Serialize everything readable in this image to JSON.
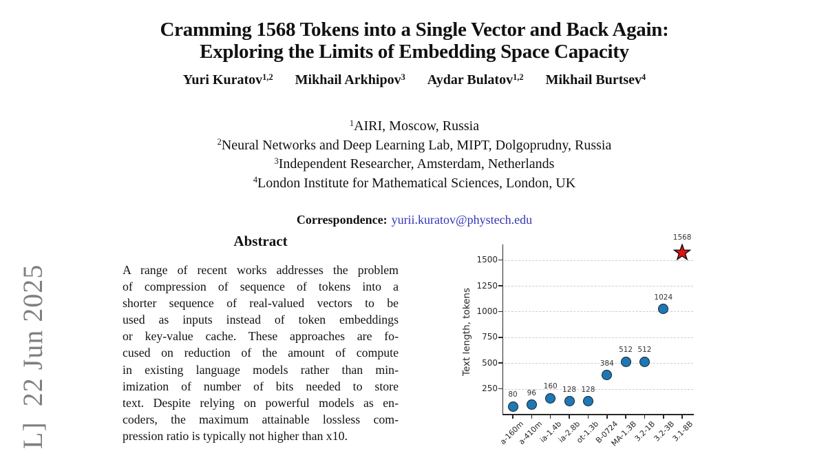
{
  "watermark": {
    "text": "L]  22 Jun 2025",
    "color": "#7f7f7f"
  },
  "header": {
    "title_line1": "Cramming 1568 Tokens into a Single Vector and Back Again:",
    "title_line2": "Exploring the Limits of Embedding Space Capacity",
    "authors": [
      {
        "name": "Yuri Kuratov",
        "sup": "1,2"
      },
      {
        "name": "Mikhail Arkhipov",
        "sup": "3"
      },
      {
        "name": "Aydar Bulatov",
        "sup": "1,2"
      },
      {
        "name": "Mikhail Burtsev",
        "sup": "4"
      }
    ],
    "affiliations": [
      {
        "sup": "1",
        "text": "AIRI, Moscow, Russia"
      },
      {
        "sup": "2",
        "text": "Neural Networks and Deep Learning Lab, MIPT, Dolgoprudny, Russia"
      },
      {
        "sup": "3",
        "text": "Independent Researcher, Amsterdam, Netherlands"
      },
      {
        "sup": "4",
        "text": "London Institute for Mathematical Sciences, London, UK"
      }
    ],
    "correspondence_label": "Correspondence:",
    "correspondence_email": "yurii.kuratov@phystech.edu",
    "email_color": "#3434b8"
  },
  "abstract": {
    "heading": "Abstract",
    "lines": [
      "A range of recent works addresses the problem",
      "of compression of sequence of tokens into a",
      "shorter sequence of real-valued vectors to be",
      "used as inputs instead of token embeddings",
      "or key-value cache. These approaches are fo-",
      "cused on reduction of the amount of compute",
      "in existing language models rather than min-",
      "imization of number of bits needed to store",
      "text. Despite relying on powerful models as en-",
      "coders, the maximum attainable lossless com-",
      "pression ratio is typically not higher than x10."
    ]
  },
  "chart_data": {
    "type": "scatter",
    "title": "",
    "xlabel": "",
    "ylabel": "Text length, tokens",
    "ylim": [
      0,
      1650
    ],
    "yticks": [
      250,
      500,
      750,
      1000,
      1250,
      1500
    ],
    "grid": "horizontal-dashed",
    "categories_visible": [
      "a-160m",
      "a-410m",
      "ia-1.4b",
      "ia-2.8b",
      "ot-1.3b",
      "B-0724",
      "MA-1.3B",
      "3.2-1B",
      "3.2-3B",
      "3.1-8B"
    ],
    "points": [
      {
        "x_label": "a-160m",
        "value": 80,
        "marker": "circle"
      },
      {
        "x_label": "a-410m",
        "value": 96,
        "marker": "circle"
      },
      {
        "x_label": "ia-1.4b",
        "value": 160,
        "marker": "circle"
      },
      {
        "x_label": "ia-2.8b",
        "value": 128,
        "marker": "circle"
      },
      {
        "x_label": "ot-1.3b",
        "value": 128,
        "marker": "circle"
      },
      {
        "x_label": "B-0724",
        "value": 384,
        "marker": "circle"
      },
      {
        "x_label": "MA-1.3B",
        "value": 512,
        "marker": "circle"
      },
      {
        "x_label": "3.2-1B",
        "value": 512,
        "marker": "circle"
      },
      {
        "x_label": "3.2-3B",
        "value": 1024,
        "marker": "circle"
      },
      {
        "x_label": "3.1-8B",
        "value": 1568,
        "marker": "star"
      }
    ],
    "marker_color": "#1f77b4",
    "marker_edge_color": "#10222e",
    "star_color": "#e01212",
    "grid_color": "#cdcdcd",
    "axis_color": "#262626"
  }
}
